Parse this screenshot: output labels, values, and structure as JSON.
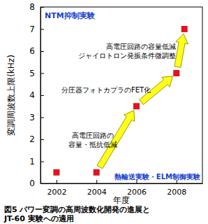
{
  "chart_data": {
    "type": "scatter",
    "title": [
      "図5 パワー変調の高周波数化開発の進展と",
      "JT-60 実験への適用"
    ],
    "x_label": "年度",
    "y_label": "変調周波数上限(kHz)",
    "x": [
      2002,
      2004,
      2006,
      2008,
      2008.4
    ],
    "values": [
      0.5,
      0.5,
      3.5,
      5,
      7
    ],
    "color": "#e3141e",
    "marker": "square",
    "xlim": [
      2001.2,
      2009.3
    ],
    "xticks": [
      2002,
      2004,
      2006,
      2008
    ],
    "ylim": [
      0,
      8
    ],
    "yticks": [
      0,
      1,
      2,
      3,
      4,
      5,
      6,
      7,
      8
    ],
    "grid": false,
    "annotations": [
      [
        "NTM抑制実験"
      ],
      [
        "熱輸送実験・ELM制御実験"
      ],
      [
        "高電圧回路の",
        "容量・抵抗低減"
      ],
      [
        "分圧器フォトカプラのFET化"
      ],
      [
        "高電圧回路の容量低減",
        "ジャイロトロン発振条件微調整"
      ]
    ]
  }
}
